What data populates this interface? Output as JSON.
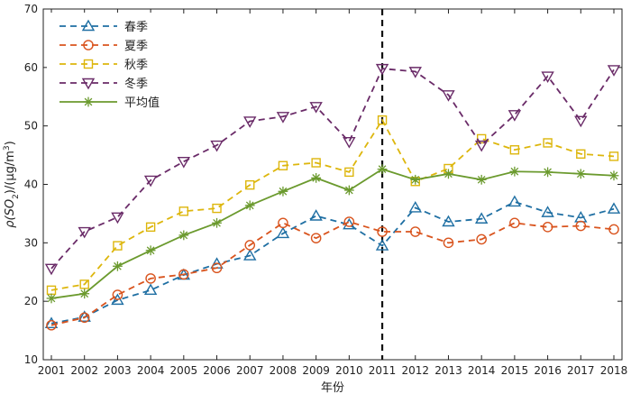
{
  "chart_data": {
    "type": "line",
    "xlabel": "年份",
    "ylabel": "ρ(SO₂)/(μg/m³)",
    "ylabel_parts": {
      "pre": "ρ(SO",
      "sub": "2",
      "mid": ")/(μg/m",
      "sup": "3",
      "post": ")"
    },
    "categories": [
      "2001",
      "2002",
      "2003",
      "2004",
      "2005",
      "2006",
      "2007",
      "2008",
      "2009",
      "2010",
      "2011",
      "2012",
      "2013",
      "2014",
      "2015",
      "2016",
      "2017",
      "2018"
    ],
    "ylim": [
      10,
      70
    ],
    "yticks": [
      10,
      20,
      30,
      40,
      50,
      60,
      70
    ],
    "reference_line_x": "2011",
    "legend_position": "top-left",
    "series": [
      {
        "name": "春季",
        "color": "#1f6fa3",
        "dash": "dashed",
        "marker": "triangle-up",
        "values": [
          16.2,
          17.3,
          20.2,
          21.9,
          24.5,
          26.4,
          27.8,
          31.6,
          34.6,
          33.1,
          29.5,
          36.0,
          33.6,
          34.1,
          37.0,
          35.2,
          34.3,
          35.8
        ]
      },
      {
        "name": "夏季",
        "color": "#d9541e",
        "dash": "dashed",
        "marker": "circle",
        "values": [
          15.9,
          17.2,
          21.1,
          23.9,
          24.6,
          25.7,
          29.6,
          33.4,
          30.8,
          33.6,
          31.9,
          31.9,
          30.0,
          30.6,
          33.4,
          32.7,
          32.9,
          32.3
        ]
      },
      {
        "name": "秋季",
        "color": "#ddb60c",
        "dash": "dashed",
        "marker": "square",
        "values": [
          21.9,
          22.9,
          29.5,
          32.7,
          35.4,
          35.9,
          39.9,
          43.2,
          43.7,
          42.1,
          51.0,
          40.5,
          42.7,
          47.8,
          45.9,
          47.1,
          45.2,
          44.8
        ]
      },
      {
        "name": "冬季",
        "color": "#6a2b68",
        "dash": "dashed",
        "marker": "triangle-down",
        "values": [
          25.6,
          31.9,
          34.4,
          40.7,
          43.9,
          46.7,
          50.8,
          51.6,
          53.3,
          47.3,
          59.8,
          59.3,
          55.3,
          46.7,
          51.9,
          58.5,
          50.9,
          59.6
        ]
      },
      {
        "name": "平均值",
        "color": "#6b9a2e",
        "dash": "solid",
        "marker": "asterisk",
        "values": [
          20.5,
          21.3,
          26.0,
          28.7,
          31.3,
          33.4,
          36.4,
          38.8,
          41.1,
          39.0,
          42.6,
          40.8,
          41.8,
          40.8,
          42.2,
          42.1,
          41.8,
          41.5
        ]
      }
    ]
  }
}
